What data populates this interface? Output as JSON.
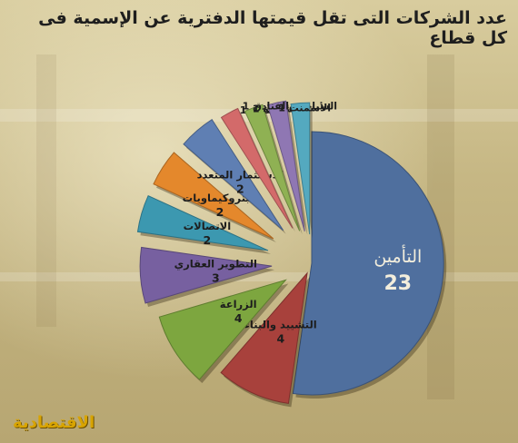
{
  "chart_data": {
    "type": "pie",
    "title": "عدد الشركات التى تقل قيمتها الدفترية عن الإسمية فى كل قطاع",
    "series": [
      {
        "label": "التأمين",
        "value": 23,
        "color": "#4f6f9e"
      },
      {
        "label": "التشييد والبناء",
        "value": 4,
        "color": "#a8413c"
      },
      {
        "label": "الزراعة",
        "value": 4,
        "color": "#7da63f"
      },
      {
        "label": "التطوير العقاري",
        "value": 3,
        "color": "#7760a0"
      },
      {
        "label": "الاتصالات",
        "value": 2,
        "color": "#3c98b0"
      },
      {
        "label": "البتروكيماويات",
        "value": 2,
        "color": "#e4882c"
      },
      {
        "label": "الاستثمار المتعدد",
        "value": 2,
        "color": "#5f7fb3"
      },
      {
        "label": "النقل",
        "value": 1,
        "color": "#d36a6a"
      },
      {
        "label": "التجزئة",
        "value": 1,
        "color": "#8fb153"
      },
      {
        "label": "السياحة والفنادق",
        "value": 1,
        "color": "#8f77b3"
      },
      {
        "label": "الأسمنت",
        "value": 1,
        "color": "#54a9bf"
      }
    ]
  },
  "logo": "الاقتصادية"
}
